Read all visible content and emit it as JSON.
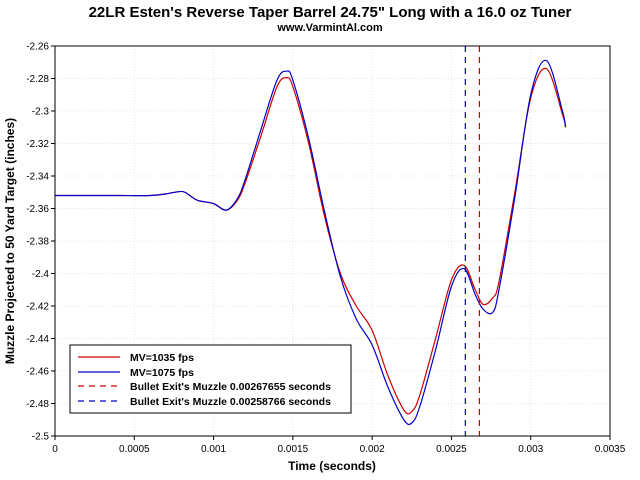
{
  "chart_data": {
    "type": "line",
    "title": "22LR Esten's Reverse Taper Barrel 24.75\" Long with a 16.0 oz Tuner",
    "subtitle": "www.VarmintAl.com",
    "xlabel": "Time (seconds)",
    "ylabel": "Muzzle Projected to 50 Yard Target (inches)",
    "xlim": [
      0,
      0.0035
    ],
    "ylim": [
      -2.5,
      -2.26
    ],
    "grid": true,
    "legend_placement": "bottom-left",
    "x_ticks": [
      "0",
      "0.0005",
      "0.001",
      "0.0015",
      "0.002",
      "0.0025",
      "0.003",
      "0.0035"
    ],
    "y_ticks": [
      "-2.26",
      "-2.28",
      "-2.3",
      "-2.32",
      "-2.34",
      "-2.36",
      "-2.38",
      "-2.4",
      "-2.42",
      "-2.44",
      "-2.46",
      "-2.48",
      "-2.5"
    ],
    "series": [
      {
        "name": "MV=1035 fps",
        "color": "#cc0000",
        "style": "solid",
        "points": [
          [
            0,
            -2.352
          ],
          [
            0.0002,
            -2.352
          ],
          [
            0.0004,
            -2.352
          ],
          [
            0.0006,
            -2.352
          ],
          [
            0.0007,
            -2.351
          ],
          [
            0.0008,
            -2.3495
          ],
          [
            0.00085,
            -2.352
          ],
          [
            0.0009,
            -2.355
          ],
          [
            0.001,
            -2.357
          ],
          [
            0.00108,
            -2.361
          ],
          [
            0.00115,
            -2.355
          ],
          [
            0.0012,
            -2.344
          ],
          [
            0.0013,
            -2.315
          ],
          [
            0.0014,
            -2.285
          ],
          [
            0.00146,
            -2.2795
          ],
          [
            0.0015,
            -2.285
          ],
          [
            0.0016,
            -2.32
          ],
          [
            0.0017,
            -2.365
          ],
          [
            0.0018,
            -2.4
          ],
          [
            0.0019,
            -2.42
          ],
          [
            0.002,
            -2.435
          ],
          [
            0.0021,
            -2.463
          ],
          [
            0.0022,
            -2.484
          ],
          [
            0.00225,
            -2.485
          ],
          [
            0.0023,
            -2.475
          ],
          [
            0.0024,
            -2.44
          ],
          [
            0.0025,
            -2.404
          ],
          [
            0.00258,
            -2.395
          ],
          [
            0.00265,
            -2.41
          ],
          [
            0.0027,
            -2.419
          ],
          [
            0.00276,
            -2.415
          ],
          [
            0.0028,
            -2.405
          ],
          [
            0.0029,
            -2.35
          ],
          [
            0.003,
            -2.292
          ],
          [
            0.0031,
            -2.274
          ],
          [
            0.0032,
            -2.302
          ],
          [
            0.00322,
            -2.31
          ]
        ]
      },
      {
        "name": "MV=1075 fps",
        "color": "#0000cc",
        "style": "solid",
        "points": [
          [
            0,
            -2.352
          ],
          [
            0.0002,
            -2.352
          ],
          [
            0.0004,
            -2.352
          ],
          [
            0.0006,
            -2.352
          ],
          [
            0.0007,
            -2.351
          ],
          [
            0.0008,
            -2.3495
          ],
          [
            0.00085,
            -2.352
          ],
          [
            0.0009,
            -2.355
          ],
          [
            0.001,
            -2.357
          ],
          [
            0.00108,
            -2.361
          ],
          [
            0.00115,
            -2.354
          ],
          [
            0.0012,
            -2.342
          ],
          [
            0.0013,
            -2.311
          ],
          [
            0.0014,
            -2.281
          ],
          [
            0.00146,
            -2.2755
          ],
          [
            0.0015,
            -2.281
          ],
          [
            0.0016,
            -2.317
          ],
          [
            0.0017,
            -2.362
          ],
          [
            0.0018,
            -2.402
          ],
          [
            0.0019,
            -2.428
          ],
          [
            0.002,
            -2.444
          ],
          [
            0.0021,
            -2.47
          ],
          [
            0.0022,
            -2.49
          ],
          [
            0.00225,
            -2.492
          ],
          [
            0.0023,
            -2.482
          ],
          [
            0.0024,
            -2.447
          ],
          [
            0.0025,
            -2.408
          ],
          [
            0.00258,
            -2.397
          ],
          [
            0.00265,
            -2.413
          ],
          [
            0.0027,
            -2.422
          ],
          [
            0.00276,
            -2.424
          ],
          [
            0.0028,
            -2.41
          ],
          [
            0.0029,
            -2.353
          ],
          [
            0.003,
            -2.29
          ],
          [
            0.0031,
            -2.269
          ],
          [
            0.0032,
            -2.3
          ],
          [
            0.00322,
            -2.31
          ]
        ]
      },
      {
        "name": "Bullet Exit's Muzzle 0.00267655 seconds",
        "color": "#cc0000",
        "style": "dashed",
        "x_value": 0.00267655
      },
      {
        "name": "Bullet Exit's Muzzle 0.00258766 seconds",
        "color": "#0000cc",
        "style": "dashed",
        "x_value": 0.00258766
      }
    ]
  }
}
